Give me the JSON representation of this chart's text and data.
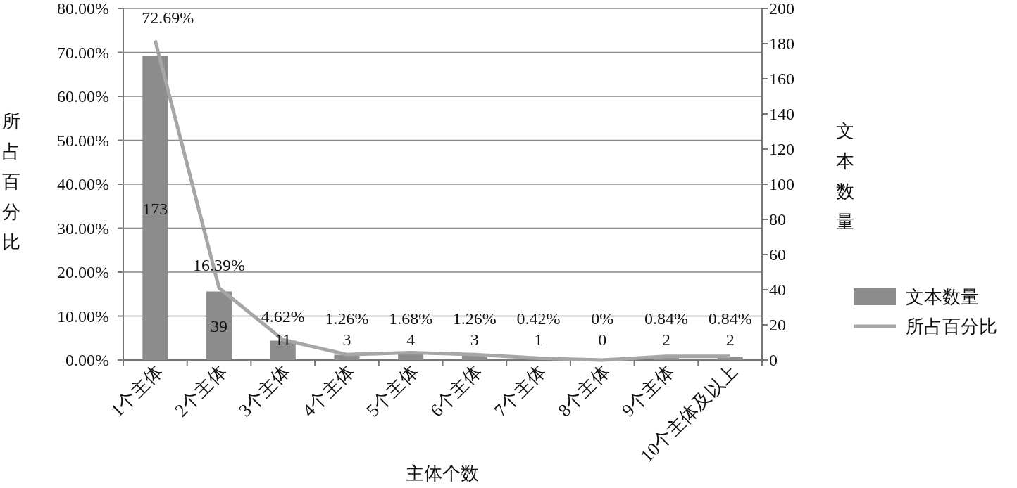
{
  "chart_data": {
    "type": "bar",
    "xlabel": "主体个数",
    "ylabel": "所占百分比",
    "y2label": "文本数量",
    "categories": [
      "1个主体",
      "2个主体",
      "3个主体",
      "4个主体",
      "5个主体",
      "6个主体",
      "7个主体",
      "8个主体",
      "9个主体",
      "10个主体及以上"
    ],
    "ylim": [
      0,
      80
    ],
    "yticks": [
      {
        "value": 0,
        "label": "0.00%"
      },
      {
        "value": 10,
        "label": "10.00%"
      },
      {
        "value": 20,
        "label": "20.00%"
      },
      {
        "value": 30,
        "label": "30.00%"
      },
      {
        "value": 40,
        "label": "40.00%"
      },
      {
        "value": 50,
        "label": "50.00%"
      },
      {
        "value": 60,
        "label": "60.00%"
      },
      {
        "value": 70,
        "label": "70.00%"
      },
      {
        "value": 80,
        "label": "80.00%"
      }
    ],
    "y2lim": [
      0,
      200
    ],
    "y2ticks": [
      0,
      20,
      40,
      60,
      80,
      100,
      120,
      140,
      160,
      180,
      200
    ],
    "grid": "y",
    "legend": "right",
    "data_labels": true,
    "marker": "none",
    "series": [
      {
        "name": "文本数量",
        "type": "bar",
        "axis": "y2",
        "color": "#8c8c8c",
        "values": [
          173,
          39,
          11,
          3,
          4,
          3,
          1,
          0,
          2,
          2
        ]
      },
      {
        "name": "所占百分比",
        "type": "line",
        "axis": "y",
        "color": "#a6a6a6",
        "values": [
          72.69,
          16.39,
          4.62,
          1.26,
          1.68,
          1.26,
          0.42,
          0,
          0.84,
          0.84
        ],
        "value_labels": [
          "72.69%",
          "16.39%",
          "4.62%",
          "1.26%",
          "1.68%",
          "1.26%",
          "0.42%",
          "0%",
          "0.84%",
          "0.84%"
        ]
      }
    ]
  }
}
